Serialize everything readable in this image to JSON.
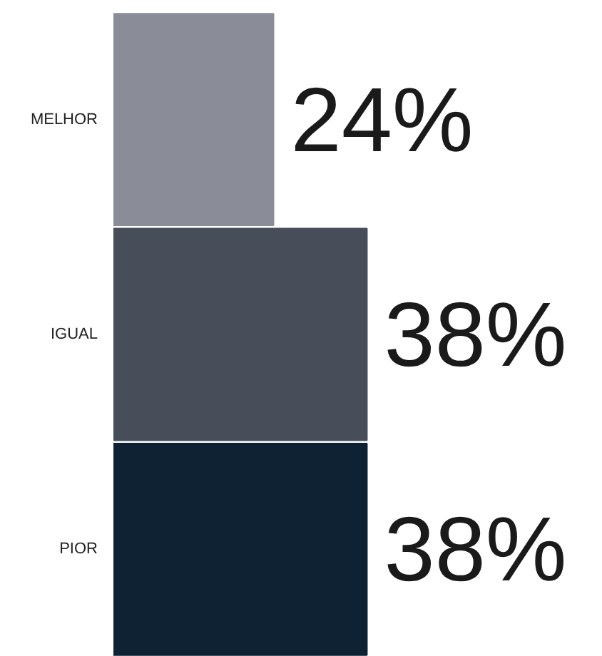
{
  "chart_data": {
    "type": "bar",
    "orientation": "horizontal",
    "categories": [
      "MELHOR",
      "IGUAL",
      "PIOR"
    ],
    "values": [
      24,
      38,
      38
    ],
    "colors": [
      "#8a8d97",
      "#474d59",
      "#0f2233"
    ],
    "value_labels": [
      "24%",
      "38%",
      "38%"
    ],
    "grid": false
  }
}
